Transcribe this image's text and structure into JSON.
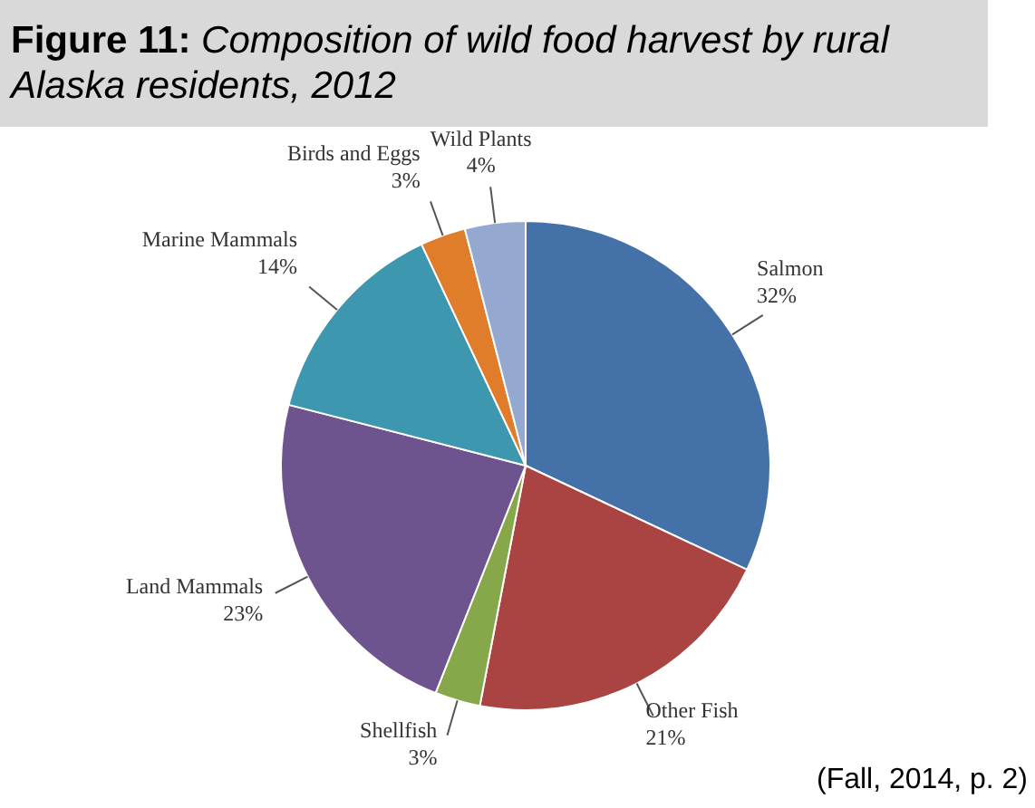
{
  "chart_data": {
    "type": "pie",
    "title": "Figure 11: Composition of wild food harvest by rural Alaska residents, 2012",
    "categories": [
      "Salmon",
      "Other Fish",
      "Shellfish",
      "Land Mammals",
      "Marine Mammals",
      "Birds and Eggs",
      "Wild Plants"
    ],
    "values": [
      32,
      21,
      3,
      23,
      14,
      3,
      4
    ],
    "value_labels": [
      "32%",
      "21%",
      "3%",
      "23%",
      "14%",
      "3%",
      "4%"
    ],
    "colors": [
      "#4472a8",
      "#a94442",
      "#86a84a",
      "#6e548e",
      "#3d97ae",
      "#e07d2a",
      "#94a8d0"
    ],
    "annotations": [
      "(Fall, 2014, p. 2)"
    ],
    "legend": false
  }
}
